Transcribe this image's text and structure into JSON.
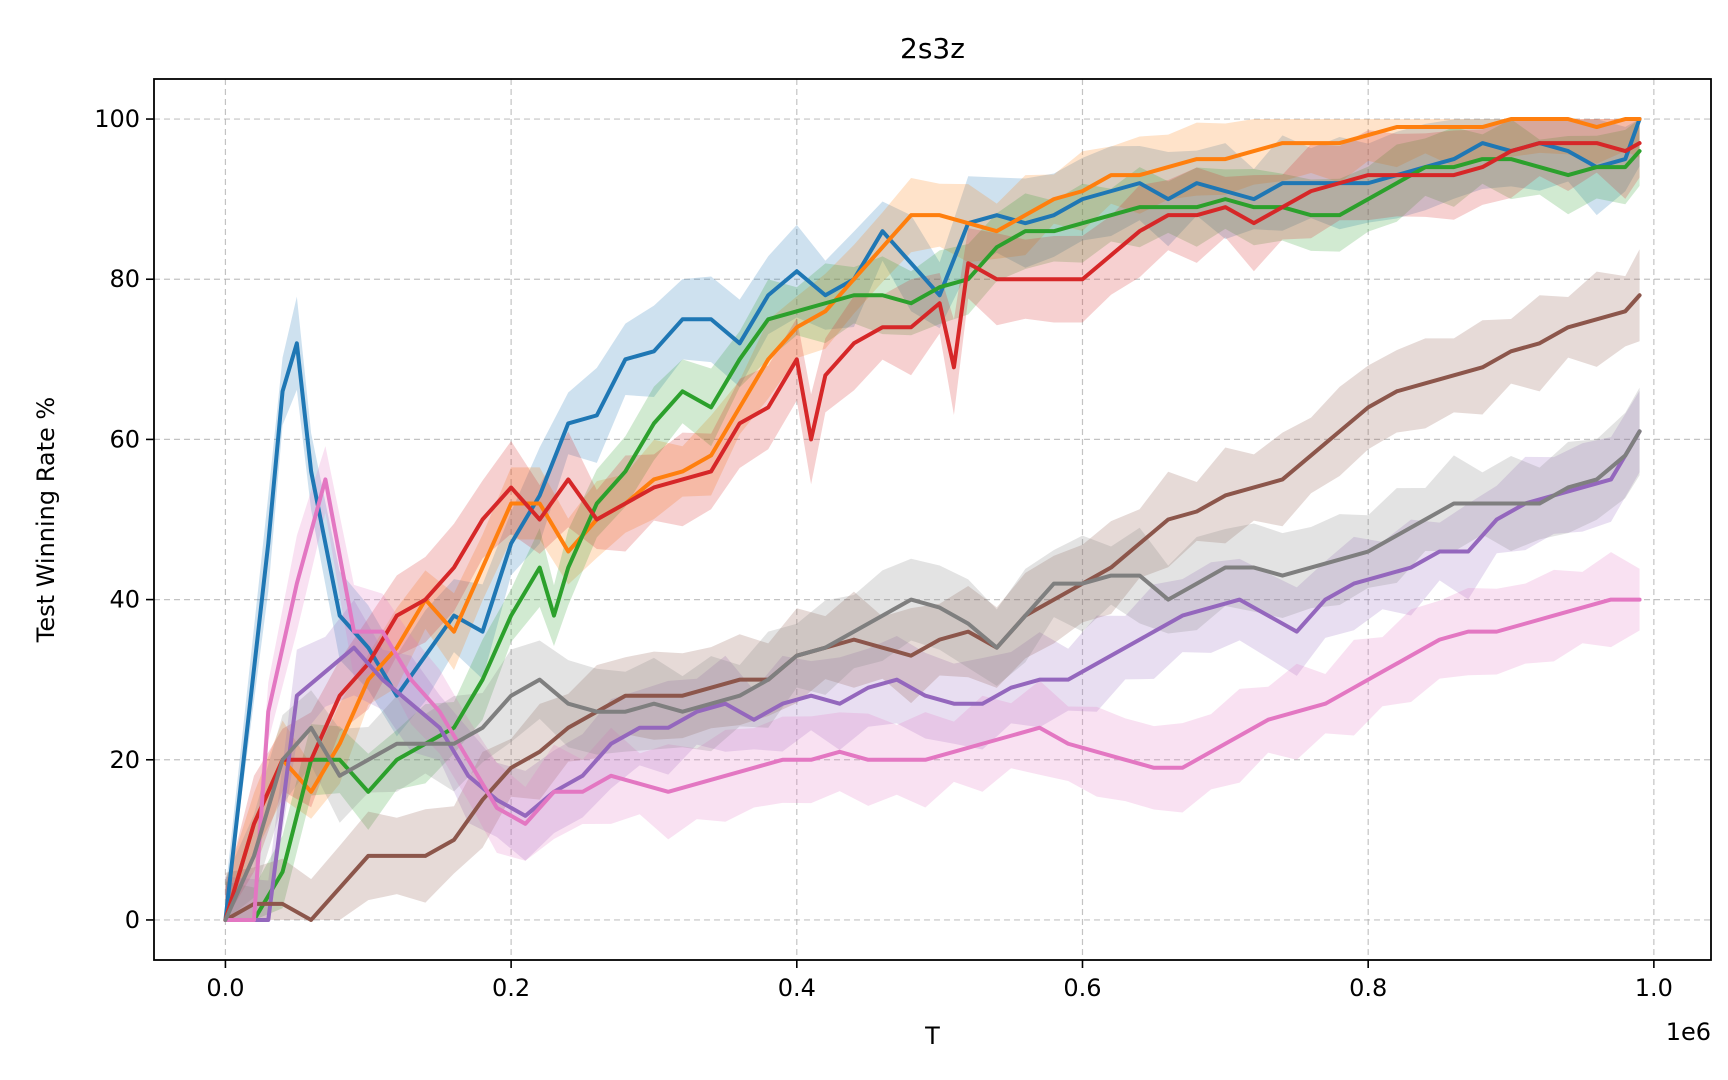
{
  "chart_data": {
    "type": "line",
    "title": "2s3z",
    "xlabel": "T",
    "ylabel": "Test Winning Rate %",
    "x_offset_label": "1e6",
    "xlim": [
      -0.05,
      1.04
    ],
    "ylim": [
      -5,
      105
    ],
    "xticks": [
      0.0,
      0.2,
      0.4,
      0.6,
      0.8,
      1.0
    ],
    "xtick_labels": [
      "0.0",
      "0.2",
      "0.4",
      "0.6",
      "0.8",
      "1.0"
    ],
    "yticks": [
      0,
      20,
      40,
      60,
      80,
      100
    ],
    "ytick_labels": [
      "0",
      "20",
      "40",
      "60",
      "80",
      "100"
    ],
    "grid": true,
    "legend": "none",
    "series": [
      {
        "color": "#1f77b4",
        "band_width": 6,
        "x": [
          0.0,
          0.03,
          0.04,
          0.05,
          0.06,
          0.08,
          0.1,
          0.12,
          0.14,
          0.16,
          0.18,
          0.2,
          0.22,
          0.24,
          0.26,
          0.28,
          0.3,
          0.32,
          0.34,
          0.36,
          0.38,
          0.4,
          0.42,
          0.44,
          0.46,
          0.48,
          0.5,
          0.52,
          0.54,
          0.56,
          0.58,
          0.6,
          0.62,
          0.64,
          0.66,
          0.68,
          0.7,
          0.72,
          0.74,
          0.76,
          0.78,
          0.8,
          0.82,
          0.84,
          0.86,
          0.88,
          0.9,
          0.92,
          0.94,
          0.96,
          0.98,
          0.99
        ],
        "y": [
          0,
          47,
          66,
          72,
          56,
          38,
          34,
          28,
          33,
          38,
          36,
          47,
          53,
          62,
          63,
          70,
          71,
          75,
          75,
          72,
          78,
          81,
          78,
          80,
          86,
          82,
          78,
          87,
          88,
          87,
          88,
          90,
          91,
          92,
          90,
          92,
          91,
          90,
          92,
          92,
          92,
          92,
          93,
          94,
          95,
          97,
          96,
          97,
          96,
          94,
          95,
          100
        ]
      },
      {
        "color": "#ff7f0e",
        "band_width": 5,
        "x": [
          0.0,
          0.02,
          0.04,
          0.06,
          0.08,
          0.1,
          0.12,
          0.14,
          0.16,
          0.18,
          0.2,
          0.22,
          0.24,
          0.26,
          0.28,
          0.3,
          0.32,
          0.34,
          0.36,
          0.38,
          0.4,
          0.42,
          0.44,
          0.46,
          0.48,
          0.5,
          0.52,
          0.54,
          0.56,
          0.58,
          0.6,
          0.62,
          0.64,
          0.66,
          0.68,
          0.7,
          0.72,
          0.74,
          0.76,
          0.78,
          0.8,
          0.82,
          0.84,
          0.86,
          0.88,
          0.9,
          0.92,
          0.94,
          0.96,
          0.98,
          0.99
        ],
        "y": [
          0,
          12,
          20,
          16,
          22,
          30,
          34,
          40,
          36,
          44,
          52,
          52,
          46,
          50,
          52,
          55,
          56,
          58,
          64,
          70,
          74,
          76,
          80,
          84,
          88,
          88,
          87,
          86,
          88,
          90,
          91,
          93,
          93,
          94,
          95,
          95,
          96,
          97,
          97,
          97,
          98,
          99,
          99,
          99,
          99,
          100,
          100,
          100,
          99,
          100,
          100
        ]
      },
      {
        "color": "#2ca02c",
        "band_width": 5,
        "x": [
          0.0,
          0.02,
          0.04,
          0.06,
          0.08,
          0.1,
          0.12,
          0.14,
          0.16,
          0.18,
          0.2,
          0.22,
          0.23,
          0.24,
          0.26,
          0.28,
          0.3,
          0.32,
          0.34,
          0.36,
          0.38,
          0.4,
          0.42,
          0.44,
          0.46,
          0.48,
          0.5,
          0.52,
          0.54,
          0.56,
          0.58,
          0.6,
          0.62,
          0.64,
          0.66,
          0.68,
          0.7,
          0.72,
          0.74,
          0.76,
          0.78,
          0.8,
          0.82,
          0.84,
          0.86,
          0.88,
          0.9,
          0.92,
          0.94,
          0.96,
          0.98,
          0.99
        ],
        "y": [
          0,
          0,
          6,
          20,
          20,
          16,
          20,
          22,
          24,
          30,
          38,
          44,
          38,
          44,
          52,
          56,
          62,
          66,
          64,
          70,
          75,
          76,
          77,
          78,
          78,
          77,
          79,
          80,
          84,
          86,
          86,
          87,
          88,
          89,
          89,
          89,
          90,
          89,
          89,
          88,
          88,
          90,
          92,
          94,
          94,
          95,
          95,
          94,
          93,
          94,
          94,
          96
        ]
      },
      {
        "color": "#d62728",
        "band_width": 6,
        "x": [
          0.0,
          0.02,
          0.04,
          0.06,
          0.08,
          0.1,
          0.12,
          0.14,
          0.16,
          0.18,
          0.2,
          0.22,
          0.24,
          0.26,
          0.28,
          0.3,
          0.32,
          0.34,
          0.36,
          0.38,
          0.4,
          0.41,
          0.42,
          0.44,
          0.46,
          0.48,
          0.5,
          0.51,
          0.52,
          0.54,
          0.56,
          0.58,
          0.6,
          0.62,
          0.64,
          0.66,
          0.68,
          0.7,
          0.72,
          0.74,
          0.76,
          0.78,
          0.8,
          0.82,
          0.84,
          0.86,
          0.88,
          0.9,
          0.92,
          0.94,
          0.96,
          0.98,
          0.99
        ],
        "y": [
          0,
          12,
          20,
          20,
          28,
          32,
          38,
          40,
          44,
          50,
          54,
          50,
          55,
          50,
          52,
          54,
          55,
          56,
          62,
          64,
          70,
          60,
          68,
          72,
          74,
          74,
          77,
          69,
          82,
          80,
          80,
          80,
          80,
          83,
          86,
          88,
          88,
          89,
          87,
          89,
          91,
          92,
          93,
          93,
          93,
          93,
          94,
          96,
          97,
          97,
          97,
          96,
          97
        ]
      },
      {
        "color": "#9467bd",
        "band_width": 6,
        "x": [
          0.0,
          0.03,
          0.05,
          0.07,
          0.09,
          0.11,
          0.13,
          0.15,
          0.17,
          0.19,
          0.21,
          0.23,
          0.25,
          0.27,
          0.29,
          0.31,
          0.33,
          0.35,
          0.37,
          0.39,
          0.41,
          0.43,
          0.45,
          0.47,
          0.49,
          0.51,
          0.53,
          0.55,
          0.57,
          0.59,
          0.61,
          0.63,
          0.65,
          0.67,
          0.69,
          0.71,
          0.73,
          0.75,
          0.77,
          0.79,
          0.81,
          0.83,
          0.85,
          0.87,
          0.89,
          0.91,
          0.93,
          0.95,
          0.97,
          0.99
        ],
        "y": [
          0,
          0,
          28,
          31,
          34,
          30,
          27,
          24,
          18,
          15,
          13,
          16,
          18,
          22,
          24,
          24,
          26,
          27,
          25,
          27,
          28,
          27,
          29,
          30,
          28,
          27,
          27,
          29,
          30,
          30,
          32,
          34,
          36,
          38,
          39,
          40,
          38,
          36,
          40,
          42,
          43,
          44,
          46,
          46,
          50,
          52,
          53,
          54,
          55,
          61
        ]
      },
      {
        "color": "#8c564b",
        "band_width": 6,
        "x": [
          0.0,
          0.02,
          0.04,
          0.06,
          0.08,
          0.1,
          0.12,
          0.14,
          0.16,
          0.18,
          0.2,
          0.22,
          0.24,
          0.26,
          0.28,
          0.3,
          0.32,
          0.34,
          0.36,
          0.38,
          0.4,
          0.42,
          0.44,
          0.46,
          0.48,
          0.5,
          0.52,
          0.54,
          0.56,
          0.58,
          0.6,
          0.62,
          0.64,
          0.66,
          0.68,
          0.7,
          0.72,
          0.74,
          0.76,
          0.78,
          0.8,
          0.82,
          0.84,
          0.86,
          0.88,
          0.9,
          0.92,
          0.94,
          0.96,
          0.98,
          0.99
        ],
        "y": [
          0,
          2,
          2,
          0,
          4,
          8,
          8,
          8,
          10,
          15,
          19,
          21,
          24,
          26,
          28,
          28,
          28,
          29,
          30,
          30,
          33,
          34,
          35,
          34,
          33,
          35,
          36,
          34,
          38,
          40,
          42,
          44,
          47,
          50,
          51,
          53,
          54,
          55,
          58,
          61,
          64,
          66,
          67,
          68,
          69,
          71,
          72,
          74,
          75,
          76,
          78
        ]
      },
      {
        "color": "#e377c2",
        "band_width": 6,
        "x": [
          0.0,
          0.02,
          0.03,
          0.05,
          0.07,
          0.09,
          0.11,
          0.13,
          0.15,
          0.17,
          0.19,
          0.21,
          0.23,
          0.25,
          0.27,
          0.29,
          0.31,
          0.33,
          0.35,
          0.37,
          0.39,
          0.41,
          0.43,
          0.45,
          0.47,
          0.49,
          0.51,
          0.53,
          0.55,
          0.57,
          0.59,
          0.61,
          0.63,
          0.65,
          0.67,
          0.69,
          0.71,
          0.73,
          0.75,
          0.77,
          0.79,
          0.81,
          0.83,
          0.85,
          0.87,
          0.89,
          0.91,
          0.93,
          0.95,
          0.97,
          0.99
        ],
        "y": [
          0,
          0,
          26,
          42,
          55,
          36,
          36,
          30,
          26,
          20,
          14,
          12,
          16,
          16,
          18,
          17,
          16,
          17,
          18,
          19,
          20,
          20,
          21,
          20,
          20,
          20,
          21,
          22,
          23,
          24,
          22,
          21,
          20,
          19,
          19,
          21,
          23,
          25,
          26,
          27,
          29,
          31,
          33,
          35,
          36,
          36,
          37,
          38,
          39,
          40,
          40
        ]
      },
      {
        "color": "#7f7f7f",
        "band_width": 6,
        "x": [
          0.0,
          0.02,
          0.04,
          0.06,
          0.08,
          0.1,
          0.12,
          0.14,
          0.16,
          0.18,
          0.2,
          0.22,
          0.24,
          0.26,
          0.28,
          0.3,
          0.32,
          0.34,
          0.36,
          0.38,
          0.4,
          0.42,
          0.44,
          0.46,
          0.48,
          0.5,
          0.52,
          0.54,
          0.56,
          0.58,
          0.6,
          0.62,
          0.64,
          0.66,
          0.68,
          0.7,
          0.72,
          0.74,
          0.76,
          0.78,
          0.8,
          0.82,
          0.84,
          0.86,
          0.88,
          0.9,
          0.92,
          0.94,
          0.96,
          0.98,
          0.99
        ],
        "y": [
          0,
          8,
          20,
          24,
          18,
          20,
          22,
          22,
          22,
          24,
          28,
          30,
          27,
          26,
          26,
          27,
          26,
          27,
          28,
          30,
          33,
          34,
          36,
          38,
          40,
          39,
          37,
          34,
          38,
          42,
          42,
          43,
          43,
          40,
          42,
          44,
          44,
          43,
          44,
          45,
          46,
          48,
          50,
          52,
          52,
          52,
          52,
          54,
          55,
          58,
          61
        ]
      }
    ]
  }
}
